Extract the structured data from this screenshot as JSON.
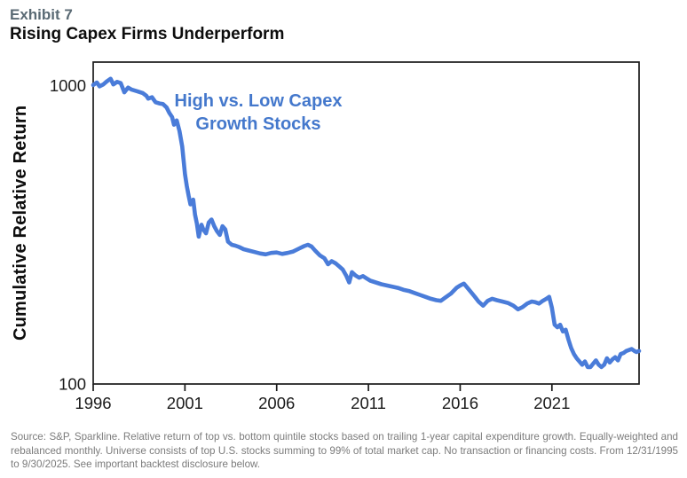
{
  "header": {
    "exhibit": "Exhibit 7",
    "title": "Rising Capex Firms Underperform"
  },
  "chart_data": {
    "type": "line",
    "title": "Rising Capex Firms Underperform",
    "xlabel": "",
    "ylabel": "Cumulative Relative Return",
    "y_scale": "log",
    "xlim": [
      1996,
      2025.75
    ],
    "ylim": [
      100,
      1200
    ],
    "x_ticks": [
      "1996",
      "2001",
      "2006",
      "2011",
      "2016",
      "2021"
    ],
    "x_tick_years": [
      1996,
      2001,
      2006,
      2011,
      2016,
      2021
    ],
    "y_ticks": [
      "1000",
      "100"
    ],
    "y_tick_values": [
      1000,
      100
    ],
    "grid": "off",
    "legend_position": "none",
    "line_color": "#4a7cd9",
    "axis_color": "#1a1a1a",
    "annotation": {
      "line1": "High vs. Low Capex",
      "line2": "Growth Stocks",
      "color": "#4478cc"
    },
    "series": [
      {
        "name": "High vs. Low Capex Growth Stocks",
        "points": [
          [
            1996.0,
            1005
          ],
          [
            1996.2,
            1025
          ],
          [
            1996.35,
            995
          ],
          [
            1996.55,
            1010
          ],
          [
            1996.75,
            1035
          ],
          [
            1996.95,
            1055
          ],
          [
            1997.1,
            1010
          ],
          [
            1997.3,
            1030
          ],
          [
            1997.5,
            1020
          ],
          [
            1997.7,
            950
          ],
          [
            1997.9,
            985
          ],
          [
            1998.1,
            970
          ],
          [
            1998.4,
            958
          ],
          [
            1998.7,
            945
          ],
          [
            1998.9,
            925
          ],
          [
            1999.0,
            905
          ],
          [
            1999.2,
            915
          ],
          [
            1999.4,
            880
          ],
          [
            1999.6,
            872
          ],
          [
            1999.8,
            868
          ],
          [
            2000.0,
            845
          ],
          [
            2000.15,
            810
          ],
          [
            2000.3,
            785
          ],
          [
            2000.4,
            740
          ],
          [
            2000.55,
            765
          ],
          [
            2000.7,
            705
          ],
          [
            2000.85,
            625
          ],
          [
            2001.0,
            505
          ],
          [
            2001.1,
            462
          ],
          [
            2001.2,
            428
          ],
          [
            2001.3,
            400
          ],
          [
            2001.45,
            415
          ],
          [
            2001.55,
            370
          ],
          [
            2001.65,
            345
          ],
          [
            2001.75,
            312
          ],
          [
            2001.9,
            342
          ],
          [
            2002.0,
            330
          ],
          [
            2002.15,
            320
          ],
          [
            2002.3,
            348
          ],
          [
            2002.45,
            356
          ],
          [
            2002.6,
            338
          ],
          [
            2002.75,
            325
          ],
          [
            2002.9,
            316
          ],
          [
            2003.05,
            338
          ],
          [
            2003.2,
            330
          ],
          [
            2003.35,
            300
          ],
          [
            2003.55,
            293
          ],
          [
            2003.75,
            291
          ],
          [
            2003.95,
            288
          ],
          [
            2004.2,
            283
          ],
          [
            2004.5,
            280
          ],
          [
            2004.8,
            277
          ],
          [
            2005.1,
            274
          ],
          [
            2005.4,
            272
          ],
          [
            2005.7,
            275
          ],
          [
            2006.0,
            276
          ],
          [
            2006.3,
            273
          ],
          [
            2006.6,
            275
          ],
          [
            2006.9,
            278
          ],
          [
            2007.2,
            284
          ],
          [
            2007.5,
            290
          ],
          [
            2007.7,
            293
          ],
          [
            2007.9,
            289
          ],
          [
            2008.1,
            280
          ],
          [
            2008.35,
            270
          ],
          [
            2008.6,
            264
          ],
          [
            2008.8,
            252
          ],
          [
            2009.0,
            258
          ],
          [
            2009.2,
            254
          ],
          [
            2009.4,
            248
          ],
          [
            2009.6,
            242
          ],
          [
            2009.8,
            230
          ],
          [
            2009.95,
            219
          ],
          [
            2010.1,
            237
          ],
          [
            2010.3,
            231
          ],
          [
            2010.5,
            227
          ],
          [
            2010.7,
            230
          ],
          [
            2010.9,
            226
          ],
          [
            2011.1,
            222
          ],
          [
            2011.4,
            219
          ],
          [
            2011.7,
            216
          ],
          [
            2012.0,
            214
          ],
          [
            2012.3,
            212
          ],
          [
            2012.6,
            210
          ],
          [
            2012.9,
            207
          ],
          [
            2013.2,
            205
          ],
          [
            2013.5,
            202
          ],
          [
            2013.8,
            199
          ],
          [
            2014.1,
            196
          ],
          [
            2014.4,
            193
          ],
          [
            2014.7,
            191
          ],
          [
            2014.95,
            190
          ],
          [
            2015.2,
            195
          ],
          [
            2015.5,
            201
          ],
          [
            2015.8,
            210
          ],
          [
            2016.0,
            214
          ],
          [
            2016.2,
            217
          ],
          [
            2016.4,
            210
          ],
          [
            2016.6,
            203
          ],
          [
            2016.8,
            196
          ],
          [
            2017.0,
            189
          ],
          [
            2017.25,
            183
          ],
          [
            2017.5,
            190
          ],
          [
            2017.75,
            193
          ],
          [
            2018.0,
            191
          ],
          [
            2018.3,
            189
          ],
          [
            2018.6,
            187
          ],
          [
            2018.9,
            183
          ],
          [
            2019.15,
            178
          ],
          [
            2019.4,
            181
          ],
          [
            2019.65,
            186
          ],
          [
            2019.9,
            189
          ],
          [
            2020.1,
            188
          ],
          [
            2020.3,
            186
          ],
          [
            2020.5,
            190
          ],
          [
            2020.7,
            193
          ],
          [
            2020.85,
            196
          ],
          [
            2021.0,
            180
          ],
          [
            2021.15,
            158
          ],
          [
            2021.3,
            155
          ],
          [
            2021.45,
            158
          ],
          [
            2021.6,
            150
          ],
          [
            2021.75,
            152
          ],
          [
            2021.9,
            141
          ],
          [
            2022.05,
            132
          ],
          [
            2022.2,
            126
          ],
          [
            2022.35,
            122
          ],
          [
            2022.5,
            119
          ],
          [
            2022.65,
            116
          ],
          [
            2022.8,
            119
          ],
          [
            2022.95,
            114
          ],
          [
            2023.1,
            114
          ],
          [
            2023.25,
            117
          ],
          [
            2023.4,
            120
          ],
          [
            2023.55,
            116
          ],
          [
            2023.7,
            114
          ],
          [
            2023.85,
            116
          ],
          [
            2024.0,
            122
          ],
          [
            2024.15,
            118
          ],
          [
            2024.3,
            121
          ],
          [
            2024.45,
            123
          ],
          [
            2024.6,
            120
          ],
          [
            2024.75,
            126
          ],
          [
            2024.9,
            127
          ],
          [
            2025.05,
            129
          ],
          [
            2025.2,
            130
          ],
          [
            2025.35,
            131
          ],
          [
            2025.5,
            129
          ],
          [
            2025.6,
            128
          ],
          [
            2025.75,
            129
          ]
        ]
      }
    ]
  },
  "footnote": "Source: S&P, Sparkline. Relative return of top vs. bottom quintile stocks based on trailing 1-year capital expenditure growth. Equally-weighted and rebalanced monthly. Universe consists of top U.S. stocks summing to 99% of total market cap. No transaction or financing costs. From 12/31/1995 to 9/30/2025. See important backtest disclosure below."
}
